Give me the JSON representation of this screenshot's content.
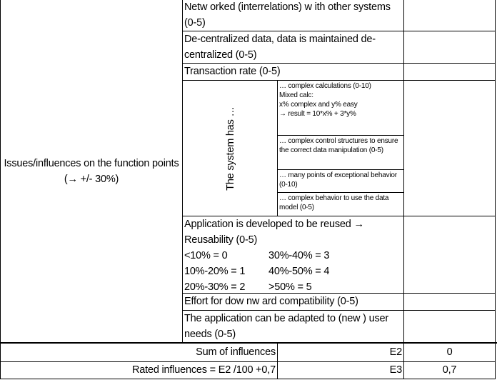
{
  "left_label": "Issues/influences on the function points (→ +/- 30%)",
  "rows": [
    {
      "text": "Netw orked (interrelations) w ith other systems (0-5)",
      "value": ""
    },
    {
      "text": "De-centralized data, data is maintained de-centralized (0-5)",
      "value": ""
    },
    {
      "text": "Transaction rate (0-5)",
      "value": ""
    }
  ],
  "system_has": {
    "label": "The system has …",
    "items": [
      {
        "lines": [
          "… complex calculations (0-10)",
          "Mixed calc:",
          "x% complex and y% easy",
          "→ result = 10*x% + 3*y%"
        ],
        "value": ""
      },
      {
        "lines": [
          "… complex control structures to ensure the correct data manipulation (0-5)"
        ],
        "value": ""
      },
      {
        "lines": [
          "… many points of exceptional behavior (0-10)"
        ],
        "value": ""
      },
      {
        "lines": [
          "… complex behavior to use the data model (0-5)"
        ],
        "value": ""
      }
    ]
  },
  "reuse": {
    "title": "Application is developed to be reused → Reusability (0-5)",
    "scale": [
      "<10% = 0",
      "30%-40% = 3",
      "10%-20% = 1",
      "40%-50% = 4",
      "20%-30% = 2",
      ">50% = 5"
    ]
  },
  "rows2": [
    {
      "text": "Effort for dow nw ard compatibility (0-5)",
      "value": ""
    },
    {
      "text": "The application can be adapted to (new ) user needs (0-5)",
      "value": ""
    }
  ],
  "summary": [
    {
      "label": "Sum of influences",
      "ref": "E2",
      "value": "0"
    },
    {
      "label": "Rated influences = E2 /100 +0,7",
      "ref": "E3",
      "value": "0,7"
    }
  ]
}
